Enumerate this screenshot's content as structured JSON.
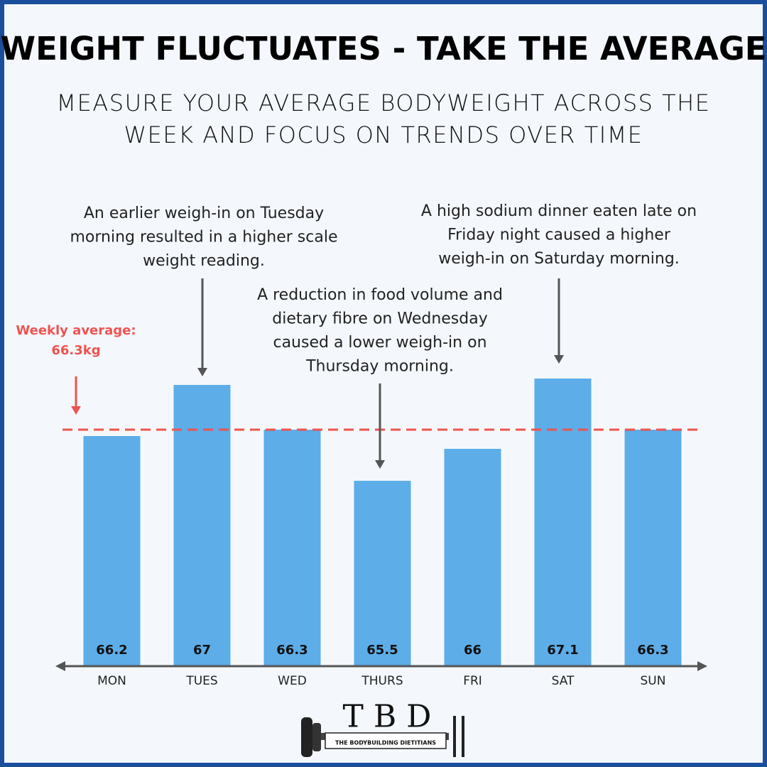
{
  "chart_data": {
    "type": "bar",
    "title": "WEIGHT FLUCTUATES - TAKE THE AVERAGE",
    "subtitle": [
      "MEASURE YOUR AVERAGE BODYWEIGHT ACROSS THE",
      "WEEK AND FOCUS ON TRENDS OVER TIME"
    ],
    "categories": [
      "MON",
      "TUES",
      "WED",
      "THURS",
      "FRI",
      "SAT",
      "SUN"
    ],
    "values": [
      66.2,
      67,
      66.3,
      65.5,
      66,
      67.1,
      66.3
    ],
    "color": "#5dade8",
    "ylim": [
      62.6,
      68.5
    ],
    "average": 66.3,
    "average_color": "#ef5350",
    "average_label": [
      "Weekly average:",
      "66.3kg"
    ],
    "annotations": [
      [
        "An earlier weigh-in on Tuesday",
        "morning resulted in a higher scale",
        "weight reading."
      ],
      [
        "A reduction in food volume and",
        "dietary fibre on Wednesday",
        "caused a lower weigh-in on",
        "Thursday morning."
      ],
      [
        "A high sodium dinner eaten late on",
        "Friday night caused a higher",
        "weigh-in on Saturday morning."
      ]
    ]
  },
  "logo": {
    "letters": "T B D",
    "tagline": "THE BODYBUILDING DIETITIANS"
  }
}
